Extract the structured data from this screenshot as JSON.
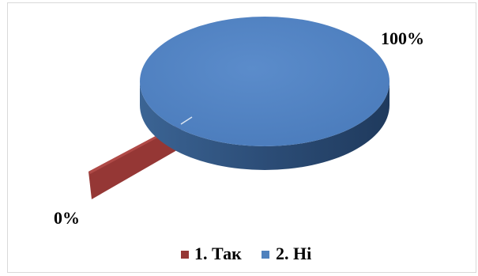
{
  "chart_data": {
    "type": "pie",
    "variant": "3d",
    "categories": [
      "1. Так",
      "2. Ні"
    ],
    "values": [
      0,
      100
    ],
    "data_labels": [
      "0%",
      "100%"
    ],
    "colors": [
      "#953735",
      "#4f81bd"
    ],
    "legend": "bottom"
  }
}
